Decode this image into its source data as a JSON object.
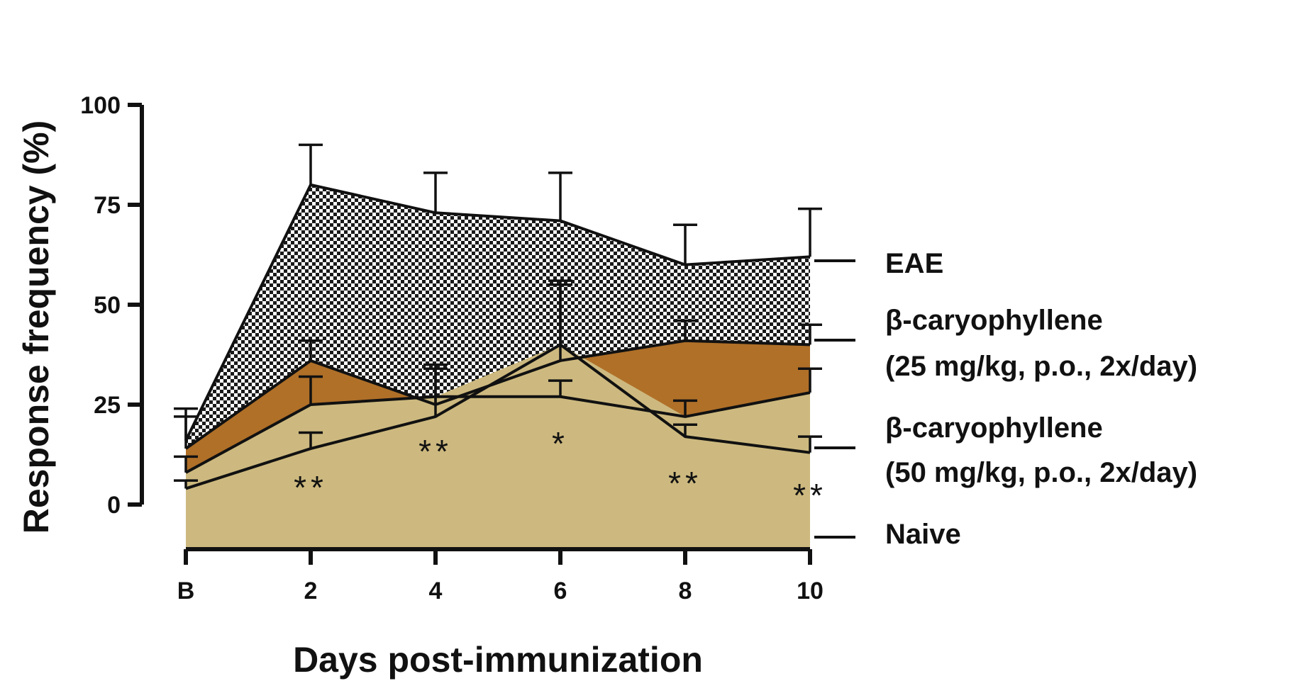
{
  "chart_data": {
    "type": "area",
    "x": [
      0,
      2,
      4,
      6,
      8,
      10
    ],
    "xtick_labels": [
      "B",
      "2",
      "4",
      "6",
      "8",
      "10"
    ],
    "xlabel": "Days post-immunization",
    "ylabel": "Response frequency (%)",
    "ylim": [
      0,
      100
    ],
    "yticks": [
      0,
      25,
      50,
      75,
      100
    ],
    "ytick_labels": [
      "0",
      "25",
      "50",
      "75",
      "100"
    ],
    "xlim": [
      0,
      10
    ],
    "grid": false,
    "legend_position": "right",
    "series": [
      {
        "name": "EAE",
        "values": [
          16,
          80,
          73,
          71,
          60,
          62
        ],
        "error": [
          8,
          10,
          10,
          12,
          10,
          12
        ],
        "fill": "checkerboard",
        "color": "#111111"
      },
      {
        "name": "β-caryophyllene (25 mg/kg, p.o., 2x/day)",
        "line1": "β-caryophyllene",
        "line2": "(25 mg/kg, p.o., 2x/day)",
        "values": [
          14,
          36,
          25,
          36,
          41,
          40
        ],
        "error": [
          8,
          5,
          9,
          20,
          5,
          5
        ],
        "fill": "#b07028",
        "color": "#111111"
      },
      {
        "name": "β-caryophyllene (50 mg/kg, p.o., 2x/day)",
        "line1": "β-caryophyllene",
        "line2": "(50 mg/kg, p.o., 2x/day)",
        "values": [
          8,
          25,
          27,
          27,
          22,
          28
        ],
        "error": [
          4,
          7,
          8,
          4,
          4,
          6
        ],
        "fill": "#cdb97f",
        "color": "#111111"
      },
      {
        "name": "Naive",
        "values": [
          4,
          14,
          22,
          40,
          17,
          13
        ],
        "error": [
          2,
          4,
          5,
          15,
          3,
          4
        ],
        "fill": "#cdb97f",
        "color": "#111111"
      }
    ],
    "annotations": [
      {
        "x": 2,
        "y": 5,
        "text": "**"
      },
      {
        "x": 4,
        "y": 14,
        "text": "**"
      },
      {
        "x": 6,
        "y": 16,
        "text": "*"
      },
      {
        "x": 8,
        "y": 6,
        "text": "**"
      },
      {
        "x": 10,
        "y": 3,
        "text": "**"
      }
    ]
  }
}
